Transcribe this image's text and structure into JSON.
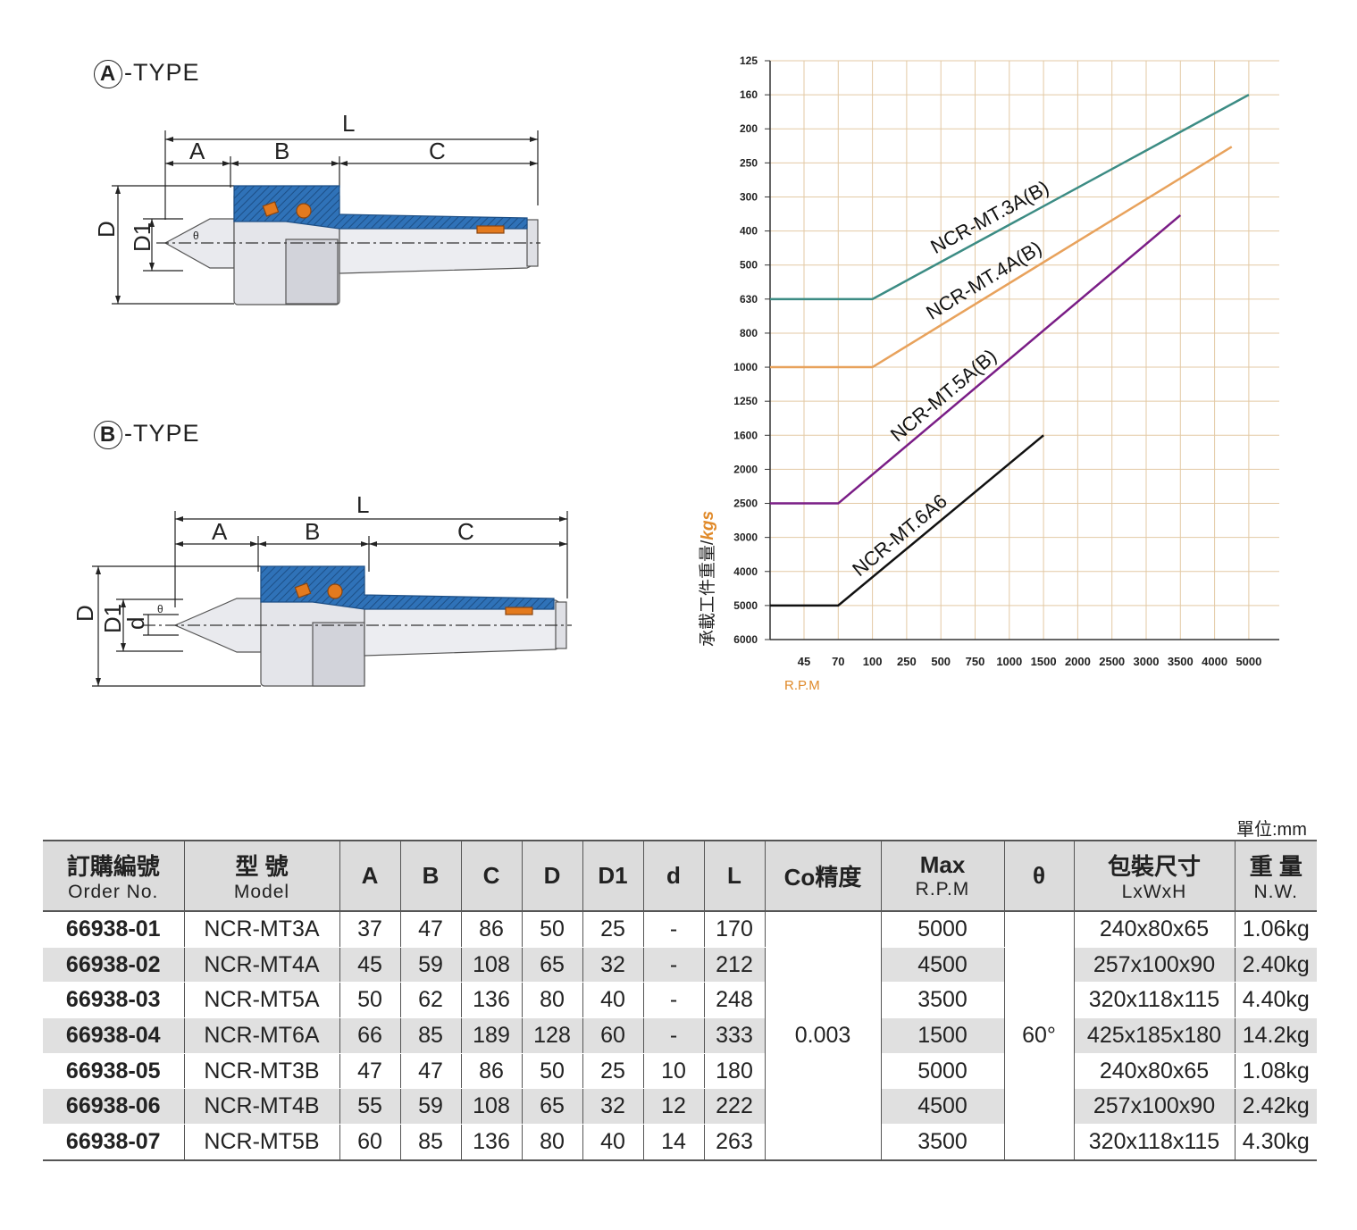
{
  "drawings": {
    "a_type": {
      "letter": "A",
      "suffix": "-TYPE"
    },
    "b_type": {
      "letter": "B",
      "suffix": "-TYPE"
    },
    "dims": {
      "A": "A",
      "B": "B",
      "C": "C",
      "L": "L",
      "D": "D",
      "D1": "D1",
      "d": "d",
      "theta": "θ"
    }
  },
  "chart_data": {
    "type": "line",
    "ylabel": "承載工件重量/",
    "ylabel_unit": "kgs",
    "xlabel": "R.P.M",
    "x_ticks": [
      "45",
      "70",
      "100",
      "250",
      "500",
      "750",
      "1000",
      "1500",
      "2000",
      "2500",
      "3000",
      "3500",
      "4000",
      "5000"
    ],
    "y_ticks": [
      "125",
      "160",
      "200",
      "250",
      "300",
      "400",
      "500",
      "630",
      "800",
      "1000",
      "1250",
      "1600",
      "2000",
      "2500",
      "3000",
      "4000",
      "5000",
      "6000"
    ],
    "y_reversed": true,
    "grid": true,
    "series": [
      {
        "name": "NCR-MT.3A(B)",
        "color": "#3c8c84",
        "x": [
          "45",
          "100",
          "5000"
        ],
        "y": [
          630,
          630,
          160
        ]
      },
      {
        "name": "NCR-MT.4A(B)",
        "color": "#e8a25c",
        "x": [
          "45",
          "100",
          "4500"
        ],
        "y": [
          1000,
          1000,
          225
        ]
      },
      {
        "name": "NCR-MT.5A(B)",
        "color": "#7a1d86",
        "x": [
          "45",
          "70",
          "3500"
        ],
        "y": [
          2500,
          2500,
          350
        ]
      },
      {
        "name": "NCR-MT.6A6",
        "color": "#111111",
        "x": [
          "45",
          "70",
          "1500"
        ],
        "y": [
          5000,
          5000,
          1600
        ]
      }
    ]
  },
  "table": {
    "unit": "單位:mm",
    "headers": [
      {
        "main": "訂購編號",
        "sub": "Order No."
      },
      {
        "main": "型 號",
        "sub": "Model"
      },
      {
        "main": "A"
      },
      {
        "main": "B"
      },
      {
        "main": "C"
      },
      {
        "main": "D"
      },
      {
        "main": "D1"
      },
      {
        "main": "d"
      },
      {
        "main": "L"
      },
      {
        "main": "Co精度"
      },
      {
        "main": "Max",
        "sub": "R.P.M"
      },
      {
        "main": "θ"
      },
      {
        "main": "包裝尺寸",
        "sub": "LxWxH"
      },
      {
        "main": "重 量",
        "sub": "N.W."
      }
    ],
    "co_precision": "0.003",
    "theta": "60°",
    "rows": [
      {
        "order": "66938-01",
        "model": "NCR-MT3A",
        "A": "37",
        "B": "47",
        "C": "86",
        "D": "50",
        "D1": "25",
        "d": "-",
        "L": "170",
        "rpm": "5000",
        "pack": "240x80x65",
        "nw": "1.06kg"
      },
      {
        "order": "66938-02",
        "model": "NCR-MT4A",
        "A": "45",
        "B": "59",
        "C": "108",
        "D": "65",
        "D1": "32",
        "d": "-",
        "L": "212",
        "rpm": "4500",
        "pack": "257x100x90",
        "nw": "2.40kg"
      },
      {
        "order": "66938-03",
        "model": "NCR-MT5A",
        "A": "50",
        "B": "62",
        "C": "136",
        "D": "80",
        "D1": "40",
        "d": "-",
        "L": "248",
        "rpm": "3500",
        "pack": "320x118x115",
        "nw": "4.40kg"
      },
      {
        "order": "66938-04",
        "model": "NCR-MT6A",
        "A": "66",
        "B": "85",
        "C": "189",
        "D": "128",
        "D1": "60",
        "d": "-",
        "L": "333",
        "rpm": "1500",
        "pack": "425x185x180",
        "nw": "14.2kg"
      },
      {
        "order": "66938-05",
        "model": "NCR-MT3B",
        "A": "47",
        "B": "47",
        "C": "86",
        "D": "50",
        "D1": "25",
        "d": "10",
        "L": "180",
        "rpm": "5000",
        "pack": "240x80x65",
        "nw": "1.08kg"
      },
      {
        "order": "66938-06",
        "model": "NCR-MT4B",
        "A": "55",
        "B": "59",
        "C": "108",
        "D": "65",
        "D1": "32",
        "d": "12",
        "L": "222",
        "rpm": "4500",
        "pack": "257x100x90",
        "nw": "2.42kg"
      },
      {
        "order": "66938-07",
        "model": "NCR-MT5B",
        "A": "60",
        "B": "85",
        "C": "136",
        "D": "80",
        "D1": "40",
        "d": "14",
        "L": "263",
        "rpm": "3500",
        "pack": "320x118x115",
        "nw": "4.30kg"
      }
    ]
  }
}
